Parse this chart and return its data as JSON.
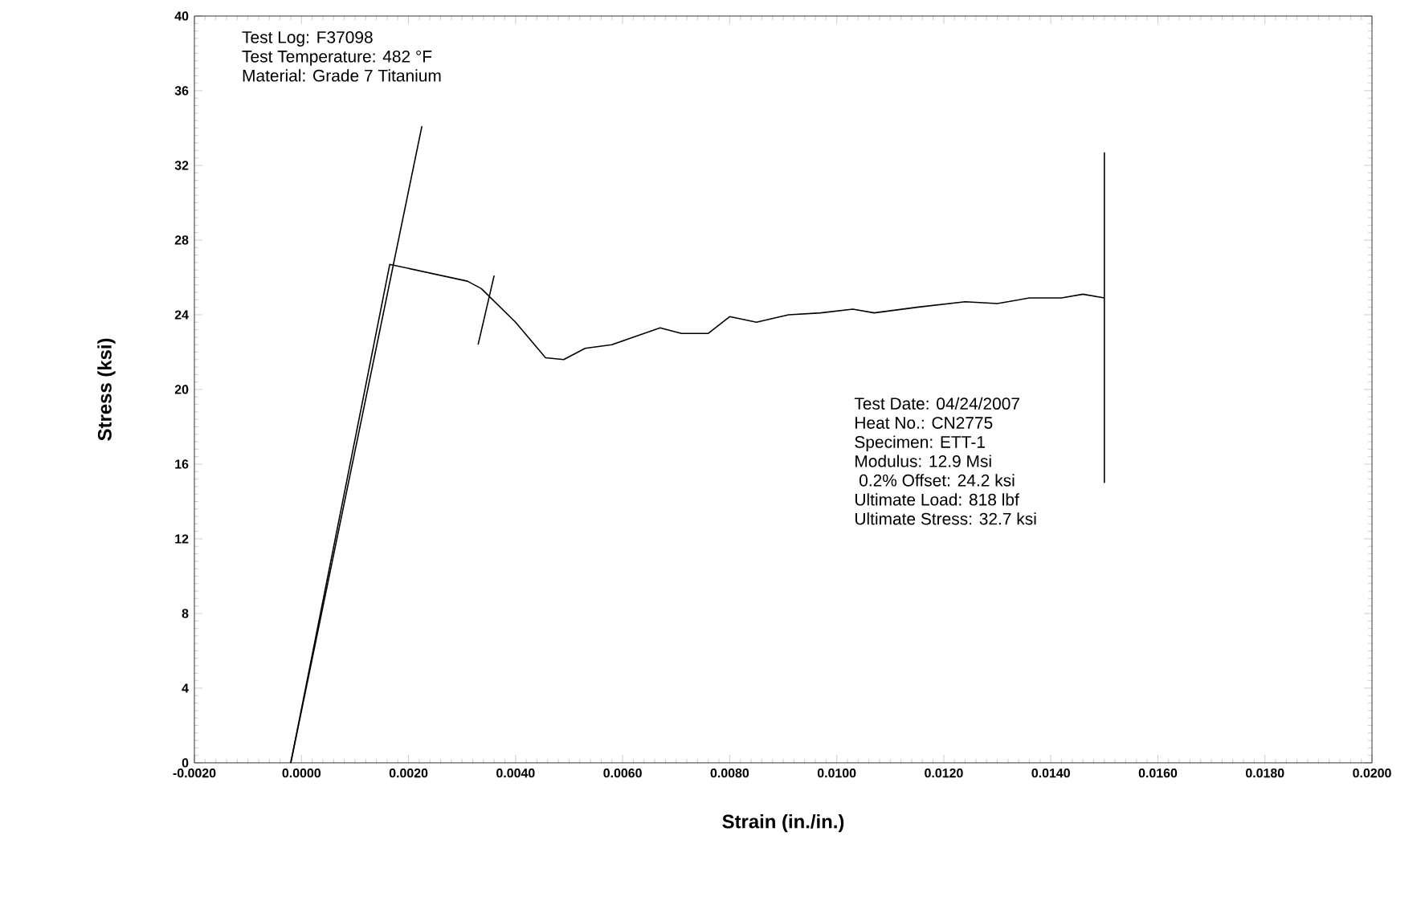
{
  "chart_data": {
    "type": "line",
    "xlabel": "Strain (in./in.)",
    "ylabel": "Stress (ksi)",
    "xlim": [
      -0.002,
      0.02
    ],
    "ylim": [
      0,
      40
    ],
    "xticks": [
      {
        "value": -0.002,
        "label": "-0.0020"
      },
      {
        "value": 0,
        "label": "0.0000"
      },
      {
        "value": 0.002,
        "label": "0.0020"
      },
      {
        "value": 0.004,
        "label": "0.0040"
      },
      {
        "value": 0.006,
        "label": "0.0060"
      },
      {
        "value": 0.008,
        "label": "0.0080"
      },
      {
        "value": 0.01,
        "label": "0.0100"
      },
      {
        "value": 0.012,
        "label": "0.0120"
      },
      {
        "value": 0.014,
        "label": "0.0140"
      },
      {
        "value": 0.016,
        "label": "0.0160"
      },
      {
        "value": 0.018,
        "label": "0.0180"
      },
      {
        "value": 0.02,
        "label": "0.0200"
      }
    ],
    "yticks": [
      0,
      4,
      8,
      12,
      16,
      20,
      24,
      28,
      32,
      36,
      40
    ],
    "grid": false,
    "marker": "none",
    "line_style": "solid",
    "series": [
      {
        "color": "#000000",
        "x": [
          -0.0002,
          0.00165,
          0.0031,
          0.00336,
          0.004,
          0.00456,
          0.0049,
          0.0053,
          0.0058,
          0.0064,
          0.0067,
          0.0071,
          0.0076,
          0.008,
          0.0085,
          0.0091,
          0.0097,
          0.0103,
          0.0107,
          0.0115,
          0.0124,
          0.013,
          0.0136,
          0.0142,
          0.0146,
          0.015
        ],
        "values": [
          0,
          26.7,
          25.8,
          25.4,
          23.6,
          21.7,
          21.6,
          22.2,
          22.4,
          23,
          23.3,
          23,
          23,
          23.9,
          23.6,
          24,
          24.1,
          24.3,
          24.1,
          24.4,
          24.7,
          24.6,
          24.9,
          24.9,
          25.1,
          24.9
        ]
      },
      {
        "color": "#000000",
        "x": [
          -0.0002,
          0.00225
        ],
        "values": [
          0,
          34.1
        ]
      },
      {
        "color": "#000000",
        "x": [
          0.0033,
          0.0036
        ],
        "values": [
          22.4,
          26.1
        ]
      },
      {
        "color": "#000000",
        "x": [
          0.015,
          0.015
        ],
        "values": [
          32.7,
          15
        ]
      }
    ],
    "annotations": [
      "Test Log: F37098",
      "Test Temperature: 482 °F",
      "Material: Grade 7 Titanium",
      "Test Date: 04/24/2007",
      "Heat No.: CN2775",
      "Specimen: ETT-1",
      "Modulus: 12.9 Msi",
      " 0.2% Offset: 24.2 ksi",
      "Ultimate Load: 818 lbf",
      "Ultimate Stress: 32.7 ksi"
    ]
  }
}
